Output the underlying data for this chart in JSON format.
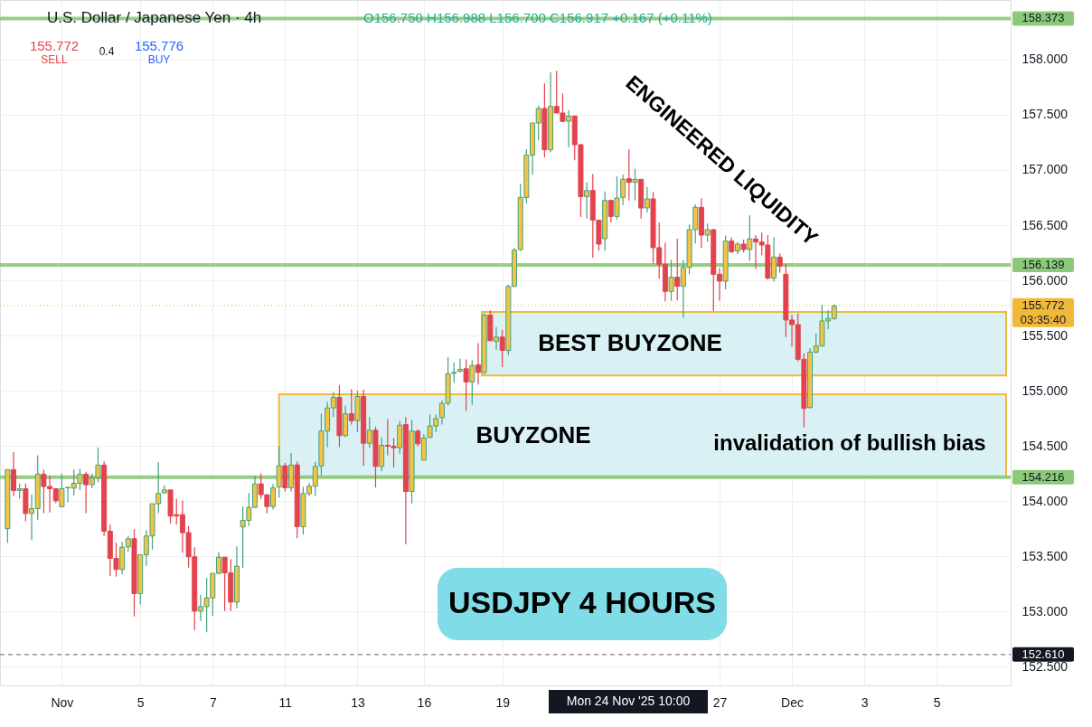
{
  "chart_data": {
    "type": "candlestick",
    "title": "U.S. Dollar / Japanese Yen · 4h",
    "categories": [
      null,
      null,
      null,
      null,
      null,
      null,
      null,
      null,
      null,
      "Nov",
      null,
      null,
      null,
      null,
      null,
      null,
      null,
      null,
      null,
      null,
      null,
      null,
      "5",
      null,
      null,
      null,
      null,
      null,
      null,
      null,
      null,
      null,
      null,
      null,
      "7",
      null,
      null,
      null,
      null,
      null,
      null,
      null,
      null,
      null,
      null,
      null,
      "11",
      null,
      null,
      null,
      null,
      null,
      null,
      null,
      null,
      null,
      null,
      null,
      "13",
      null,
      null,
      null,
      null,
      null,
      null,
      null,
      null,
      null,
      null,
      "16",
      null,
      null,
      null,
      null,
      null,
      null,
      null,
      null,
      null,
      null,
      null,
      null,
      "19",
      null,
      null,
      null,
      null,
      null,
      null,
      null,
      null,
      null,
      null,
      null,
      null,
      null,
      null,
      null,
      null,
      null,
      null,
      null,
      null,
      null,
      null,
      null,
      null,
      null,
      null,
      null,
      null,
      null,
      null,
      null,
      null,
      null,
      null,
      null,
      "27",
      null,
      null,
      null,
      null,
      null,
      null,
      null,
      null,
      null,
      null,
      null,
      "Dec",
      null,
      null,
      null,
      null,
      null,
      null,
      null,
      null,
      null,
      null,
      null,
      "3",
      null,
      null,
      null,
      null,
      null,
      null,
      null,
      null,
      null,
      null,
      null,
      "5",
      null,
      null,
      null,
      null,
      null,
      null,
      null,
      null,
      null,
      null,
      null
    ],
    "ohlc": [
      [
        153.75,
        154.285,
        153.62,
        154.285
      ],
      [
        154.285,
        154.443,
        154.047,
        154.096
      ],
      [
        154.096,
        154.16,
        154.02,
        154.112
      ],
      [
        154.112,
        154.16,
        153.817,
        153.888
      ],
      [
        153.888,
        154.06,
        153.645,
        153.932
      ],
      [
        153.932,
        154.416,
        153.828,
        154.244
      ],
      [
        154.244,
        154.285,
        153.891,
        154.132
      ],
      [
        154.132,
        154.23,
        153.897,
        154.112
      ],
      [
        154.112,
        154.112,
        153.98,
        154.003
      ],
      [
        153.948,
        154.25,
        153.948,
        154.112
      ],
      [
        154.12,
        154.125,
        153.99,
        154.125
      ],
      [
        154.118,
        154.285,
        154.05,
        154.162
      ],
      [
        154.16,
        154.293,
        154.1,
        154.243
      ],
      [
        154.243,
        154.265,
        153.89,
        154.148
      ],
      [
        154.15,
        154.25,
        154.115,
        154.21
      ],
      [
        154.21,
        154.484,
        154.17,
        154.326
      ],
      [
        154.326,
        154.36,
        153.684,
        153.727
      ],
      [
        153.727,
        153.787,
        153.323,
        153.481
      ],
      [
        153.481,
        153.623,
        153.315,
        153.38
      ],
      [
        153.38,
        153.63,
        153.336,
        153.582
      ],
      [
        153.585,
        153.686,
        153.541,
        153.659
      ],
      [
        153.659,
        153.746,
        152.954,
        153.162
      ],
      [
        153.162,
        153.514,
        153.063,
        153.514
      ],
      [
        153.514,
        153.738,
        153.413,
        153.684
      ],
      [
        153.684,
        153.976,
        153.56,
        153.976
      ],
      [
        153.976,
        154.353,
        153.891,
        154.069
      ],
      [
        154.074,
        154.142,
        154.074,
        154.101
      ],
      [
        154.101,
        154.101,
        153.796,
        153.864
      ],
      [
        153.877,
        154.02,
        153.787,
        153.864
      ],
      [
        153.877,
        154.006,
        153.533,
        153.714
      ],
      [
        153.714,
        153.774,
        153.397,
        153.495
      ],
      [
        153.495,
        153.582,
        152.831,
        153.003
      ],
      [
        153.003,
        153.151,
        152.913,
        153.044
      ],
      [
        153.044,
        153.304,
        152.812,
        153.123
      ],
      [
        153.123,
        153.345,
        152.96,
        153.345
      ],
      [
        153.345,
        153.536,
        153.337,
        153.492
      ],
      [
        153.492,
        153.492,
        153.003,
        153.35
      ],
      [
        153.35,
        153.473,
        153.003,
        153.085
      ],
      [
        153.085,
        153.59,
        153.028,
        153.41
      ],
      [
        153.766,
        153.951,
        153.397,
        153.825
      ],
      [
        153.825,
        154.074,
        153.774,
        153.943
      ],
      [
        153.943,
        154.23,
        153.937,
        154.156
      ],
      [
        154.156,
        154.252,
        154.02,
        154.058
      ],
      [
        154.058,
        154.058,
        153.888,
        153.951
      ],
      [
        153.951,
        154.156,
        153.924,
        154.12
      ],
      [
        154.129,
        154.498,
        154.033,
        154.32
      ],
      [
        154.32,
        154.347,
        154.088,
        154.12
      ],
      [
        154.12,
        154.435,
        154.088,
        154.326
      ],
      [
        154.328,
        154.36,
        153.664,
        153.768
      ],
      [
        153.768,
        154.128,
        153.699,
        154.068
      ],
      [
        154.068,
        154.164,
        154.046,
        154.134
      ],
      [
        154.134,
        154.355,
        154.046,
        154.314
      ],
      [
        154.319,
        154.792,
        154.232,
        154.634
      ],
      [
        154.634,
        154.899,
        154.489,
        154.844
      ],
      [
        154.844,
        154.989,
        154.762,
        154.94
      ],
      [
        154.94,
        155.049,
        154.489,
        154.593
      ],
      [
        154.593,
        154.866,
        154.579,
        154.79
      ],
      [
        154.792,
        155.016,
        154.694,
        154.729
      ],
      [
        154.729,
        155.002,
        154.625,
        154.948
      ],
      [
        154.948,
        155.008,
        154.319,
        154.524
      ],
      [
        154.524,
        154.762,
        154.483,
        154.642
      ],
      [
        154.642,
        154.675,
        154.123,
        154.314
      ],
      [
        154.314,
        154.579,
        154.27,
        154.505
      ],
      [
        154.505,
        154.743,
        154.415,
        154.498
      ],
      [
        154.497,
        154.573,
        154.306,
        154.483
      ],
      [
        154.483,
        154.729,
        154.429,
        154.688
      ],
      [
        154.694,
        154.762,
        153.609,
        154.087
      ],
      [
        154.087,
        154.735,
        153.978,
        154.634
      ],
      [
        154.634,
        154.653,
        154.497,
        154.519
      ],
      [
        154.371,
        154.606,
        154.371,
        154.571
      ],
      [
        154.576,
        154.784,
        154.576,
        154.68
      ],
      [
        154.68,
        154.784,
        154.626,
        154.748
      ],
      [
        154.757,
        154.912,
        154.694,
        154.885
      ],
      [
        154.888,
        155.303,
        154.866,
        155.153
      ],
      [
        155.158,
        155.257,
        155.071,
        155.166
      ],
      [
        155.175,
        155.289,
        155.166,
        155.194
      ],
      [
        155.199,
        155.284,
        154.817,
        155.079
      ],
      [
        155.079,
        155.276,
        154.871,
        155.227
      ],
      [
        155.235,
        155.43,
        155.057,
        155.166
      ],
      [
        155.166,
        155.7,
        155.15,
        155.686
      ],
      [
        155.686,
        155.727,
        155.453,
        155.453
      ],
      [
        155.448,
        155.576,
        155.371,
        155.486
      ],
      [
        155.486,
        155.549,
        155.213,
        155.366
      ],
      [
        155.366,
        155.959,
        155.322,
        155.945
      ],
      [
        155.945,
        156.295,
        155.945,
        156.273
      ],
      [
        156.279,
        156.874,
        156.267,
        156.751
      ],
      [
        156.751,
        157.188,
        156.696,
        157.134
      ],
      [
        157.134,
        157.426,
        156.956,
        157.426
      ],
      [
        157.426,
        157.584,
        157.27,
        157.557
      ],
      [
        157.557,
        157.784,
        157.115,
        157.183
      ],
      [
        157.183,
        157.885,
        157.161,
        157.576
      ],
      [
        157.576,
        157.899,
        157.516,
        157.516
      ],
      [
        157.516,
        157.694,
        157.434,
        157.44
      ],
      [
        157.442,
        157.543,
        157.207,
        157.489
      ],
      [
        157.489,
        157.489,
        157.087,
        157.229
      ],
      [
        157.229,
        157.235,
        156.574,
        156.759
      ],
      [
        156.759,
        156.888,
        156.56,
        156.814
      ],
      [
        156.814,
        156.962,
        156.205,
        156.546
      ],
      [
        156.546,
        156.546,
        156.268,
        156.328
      ],
      [
        156.377,
        156.806,
        156.268,
        156.724
      ],
      [
        156.724,
        156.732,
        156.524,
        156.579
      ],
      [
        156.579,
        156.942,
        156.552,
        156.746
      ],
      [
        156.751,
        156.956,
        156.683,
        156.915
      ],
      [
        156.921,
        157.188,
        156.724,
        156.888
      ],
      [
        156.888,
        157.011,
        156.724,
        156.915
      ],
      [
        156.915,
        156.915,
        156.56,
        156.655
      ],
      [
        156.656,
        156.847,
        156.615,
        156.738
      ],
      [
        156.738,
        156.801,
        156.151,
        156.296
      ],
      [
        156.296,
        156.525,
        156.014,
        156.145
      ],
      [
        156.145,
        156.342,
        155.809,
        155.9
      ],
      [
        155.9,
        156.186,
        155.815,
        156.028
      ],
      [
        156.028,
        156.377,
        155.817,
        155.946
      ],
      [
        155.946,
        156.183,
        155.659,
        156.115
      ],
      [
        156.118,
        156.506,
        156.055,
        156.459
      ],
      [
        156.459,
        156.689,
        156.334,
        156.662
      ],
      [
        156.662,
        156.744,
        156.293,
        156.41
      ],
      [
        156.41,
        156.514,
        156.35,
        156.459
      ],
      [
        156.459,
        156.465,
        155.722,
        156.055
      ],
      [
        156.055,
        156.11,
        155.815,
        155.992
      ],
      [
        155.992,
        156.405,
        155.918,
        156.356
      ],
      [
        156.356,
        156.388,
        156.246,
        156.26
      ],
      [
        156.266,
        156.347,
        156.238,
        156.328
      ],
      [
        156.328,
        156.369,
        156.252,
        156.279
      ],
      [
        156.279,
        156.588,
        156.178,
        156.375
      ],
      [
        156.375,
        156.41,
        156.102,
        156.347
      ],
      [
        156.347,
        156.432,
        156.227,
        156.32
      ],
      [
        156.32,
        156.41,
        156.006,
        156.02
      ],
      [
        156.02,
        156.391,
        155.987,
        156.211
      ],
      [
        156.211,
        156.246,
        156.069,
        156.129
      ],
      [
        156.055,
        156.151,
        155.487,
        155.64
      ],
      [
        155.64,
        155.686,
        155.399,
        155.599
      ],
      [
        155.599,
        155.7,
        155.268,
        155.285
      ],
      [
        155.285,
        155.339,
        154.667,
        154.839
      ],
      [
        154.847,
        155.386,
        154.839,
        155.35
      ],
      [
        155.35,
        155.522,
        155.339,
        155.405
      ],
      [
        155.405,
        155.776,
        155.399,
        155.632
      ],
      [
        155.632,
        155.727,
        155.558,
        155.653
      ],
      [
        155.653,
        155.782,
        155.645,
        155.768
      ],
      null,
      null,
      null,
      null,
      null,
      null,
      null,
      null,
      null,
      null,
      null,
      null,
      null,
      null,
      null,
      null,
      null,
      null,
      null,
      null,
      null,
      null,
      null,
      null,
      null,
      null,
      null,
      null
    ],
    "ylim": [
      152.33,
      158.54
    ],
    "yticks": [
      {
        "value": 152.5,
        "label": "152.500"
      },
      {
        "value": 153,
        "label": "153.000"
      },
      {
        "value": 153.5,
        "label": "153.500"
      },
      {
        "value": 154,
        "label": "154.000"
      },
      {
        "value": 154.5,
        "label": "154.500"
      },
      {
        "value": 155,
        "label": "155.000"
      },
      {
        "value": 155.5,
        "label": "155.500"
      },
      {
        "value": 156,
        "label": "156.000"
      },
      {
        "value": 156.5,
        "label": "156.500"
      },
      {
        "value": 157,
        "label": "157.000"
      },
      {
        "value": 157.5,
        "label": "157.500"
      },
      {
        "value": 158,
        "label": "158.000"
      }
    ],
    "grid": true,
    "ref_lines": [
      {
        "axis": "y",
        "value": 158.373,
        "label": "158.373",
        "color": "#8cc97a"
      },
      {
        "axis": "y",
        "value": 156.139,
        "label": "156.139",
        "color": "#8cc97a"
      },
      {
        "axis": "y",
        "value": 154.216,
        "label": "154.216",
        "color": "#8cc97a"
      },
      {
        "axis": "y",
        "value": 155.772,
        "label": "155.772\n03:35:40",
        "color": "#f0b93a",
        "line_style": "dotted"
      },
      {
        "axis": "y",
        "value": 152.61,
        "label": "152.610",
        "color": "#777777",
        "line_style": "dashed"
      }
    ],
    "bands": [
      {
        "axis": "y",
        "from": 155.139,
        "to": 155.713,
        "label": "BEST BUYZONE",
        "color": "#d9f1f5"
      },
      {
        "axis": "y",
        "from": 154.221,
        "to": 154.967,
        "label": "BUYZONE",
        "color": "#d9f1f5"
      }
    ],
    "annotations": [
      "O156.750 H156.988 L156.700 C156.917 +0.167 (+0.11%)",
      "155.772",
      "SELL",
      "0.4",
      "155.776",
      "BUY",
      "ENGINEERED LIQUIDITY",
      "invalidation of bullish bias",
      "USDJPY 4 HOURS",
      "Mon 24 Nov '25   10:00"
    ]
  }
}
